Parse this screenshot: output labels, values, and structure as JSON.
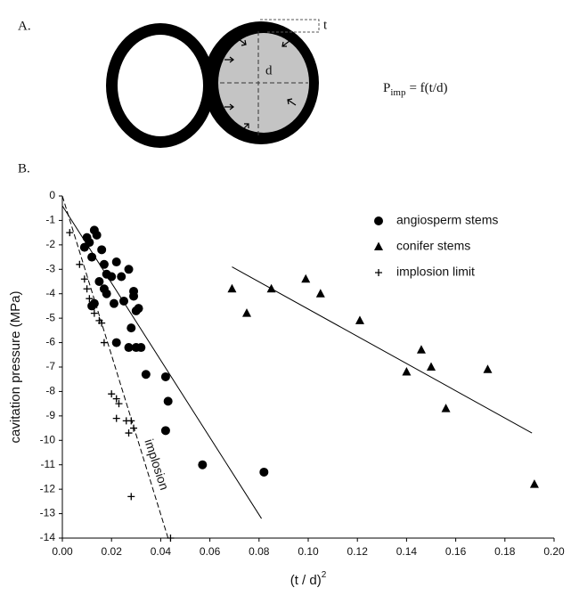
{
  "panel_a": {
    "label": "A.",
    "thickness_label": "t",
    "diameter_label": "d",
    "equation": {
      "base": "P",
      "subscript": "imp",
      "rest": "= f(t/d)"
    }
  },
  "chart_data": {
    "type": "scatter",
    "panel_label": "B.",
    "x_label": "(t / d)",
    "x_label_superscript": "2",
    "y_label": "cavitation pressure (MPa)",
    "xlim": [
      0,
      0.2
    ],
    "ylim": [
      -14,
      0
    ],
    "xticks": [
      {
        "value": 0,
        "label": "0.00"
      },
      {
        "value": 0.02,
        "label": "0.02"
      },
      {
        "value": 0.04,
        "label": "0.04"
      },
      {
        "value": 0.06,
        "label": "0.06"
      },
      {
        "value": 0.08,
        "label": "0.08"
      },
      {
        "value": 0.1,
        "label": "0.10"
      },
      {
        "value": 0.12,
        "label": "0.12"
      },
      {
        "value": 0.14,
        "label": "0.14"
      },
      {
        "value": 0.16,
        "label": "0.16"
      },
      {
        "value": 0.18,
        "label": "0.18"
      },
      {
        "value": 0.2,
        "label": "0.20"
      }
    ],
    "yticks": [
      0,
      -1,
      -2,
      -3,
      -4,
      -5,
      -6,
      -7,
      -8,
      -9,
      -10,
      -11,
      -12,
      -13,
      -14
    ],
    "series": [
      {
        "name": "angiosperm stems",
        "marker": "circle",
        "color": "#000000",
        "x": [
          0.009,
          0.01,
          0.011,
          0.012,
          0.013,
          0.014,
          0.012,
          0.013,
          0.015,
          0.016,
          0.017,
          0.018,
          0.017,
          0.018,
          0.02,
          0.021,
          0.022,
          0.024,
          0.025,
          0.027,
          0.029,
          0.029,
          0.03,
          0.031,
          0.028,
          0.022,
          0.027,
          0.03,
          0.032,
          0.034,
          0.042,
          0.043,
          0.042,
          0.057,
          0.082
        ],
        "y": [
          -2.1,
          -1.7,
          -1.9,
          -2.5,
          -1.4,
          -1.6,
          -4.5,
          -4.4,
          -3.5,
          -2.2,
          -2.8,
          -3.2,
          -3.8,
          -4.0,
          -3.3,
          -4.4,
          -2.7,
          -3.3,
          -4.3,
          -3.0,
          -3.9,
          -4.1,
          -4.7,
          -4.6,
          -5.4,
          -6.0,
          -6.2,
          -6.2,
          -6.2,
          -7.3,
          -7.4,
          -8.4,
          -9.6,
          -11.0,
          -11.3
        ]
      },
      {
        "name": "conifer stems",
        "marker": "triangle",
        "color": "#000000",
        "x": [
          0.069,
          0.075,
          0.085,
          0.099,
          0.105,
          0.121,
          0.14,
          0.146,
          0.15,
          0.156,
          0.173,
          0.192
        ],
        "y": [
          -3.8,
          -4.8,
          -3.8,
          -3.4,
          -4.0,
          -5.1,
          -7.2,
          -6.3,
          -7.0,
          -8.7,
          -7.1,
          -11.8
        ]
      },
      {
        "name": "implosion limit",
        "marker": "plus",
        "color": "#000000",
        "x": [
          0.003,
          0.007,
          0.009,
          0.01,
          0.011,
          0.012,
          0.013,
          0.015,
          0.016,
          0.017,
          0.02,
          0.022,
          0.023,
          0.022,
          0.026,
          0.027,
          0.028,
          0.029,
          0.028,
          0.044
        ],
        "y": [
          -1.5,
          -2.8,
          -3.4,
          -3.8,
          -4.2,
          -4.5,
          -4.8,
          -5.1,
          -5.2,
          -6.0,
          -8.1,
          -8.3,
          -8.5,
          -9.1,
          -9.2,
          -9.7,
          -9.2,
          -9.5,
          -12.3,
          -14.0
        ]
      }
    ],
    "fit_lines": [
      {
        "x": [
          0.0,
          0.081
        ],
        "y": [
          -0.4,
          -13.2
        ],
        "dashed": false
      },
      {
        "x": [
          0.069,
          0.191
        ],
        "y": [
          -2.9,
          -9.7
        ],
        "dashed": false
      },
      {
        "x": [
          0.0,
          0.043
        ],
        "y": [
          0.0,
          -14.0
        ],
        "dashed": true
      }
    ],
    "annotation": "implosion",
    "legend": "upper right"
  }
}
